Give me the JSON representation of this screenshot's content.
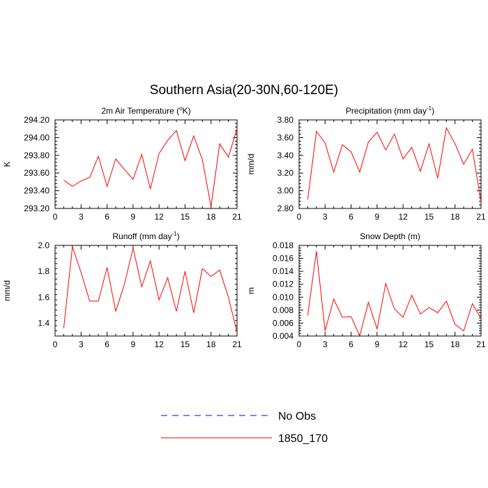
{
  "figure_title": "Southern Asia(20-30N,60-120E)",
  "colors": {
    "model": "#ff0000",
    "obs": "#0000ff",
    "axis": "#000000"
  },
  "legend": [
    {
      "label": "No Obs",
      "style": "dashed",
      "color": "#0000ff"
    },
    {
      "label": "1850_170",
      "style": "solid",
      "color": "#ff0000"
    }
  ],
  "chart_data": [
    {
      "type": "line",
      "title": "2m Air Temperature (°K)",
      "title_parts": [
        "2m Air Temperature (",
        "o",
        "K)"
      ],
      "xlabel": "",
      "ylabel": "K",
      "xlim": [
        0,
        21
      ],
      "ylim": [
        293.2,
        294.2
      ],
      "xticks": [
        0,
        3,
        6,
        9,
        12,
        15,
        18,
        21
      ],
      "yticks": [
        293.2,
        293.4,
        293.6,
        293.8,
        294.0,
        294.2
      ],
      "ytick_labels": [
        "293.20",
        "293.40",
        "293.60",
        "293.80",
        "294.00",
        "294.20"
      ],
      "grid": false,
      "series": [
        {
          "name": "1850_170",
          "x": [
            1,
            2,
            3,
            4,
            5,
            6,
            7,
            8,
            9,
            10,
            11,
            12,
            13,
            14,
            15,
            16,
            17,
            18,
            19,
            20,
            21
          ],
          "values": [
            293.52,
            293.45,
            293.51,
            293.55,
            293.79,
            293.45,
            293.76,
            293.64,
            293.53,
            293.81,
            293.42,
            293.82,
            293.97,
            294.08,
            293.74,
            294.02,
            293.75,
            293.22,
            293.93,
            293.78,
            294.1
          ]
        }
      ]
    },
    {
      "type": "line",
      "title": "Precipitation (mm day⁻¹)",
      "title_parts": [
        "Precipitation (mm day",
        "-1",
        ")"
      ],
      "xlabel": "",
      "ylabel": "mm/d",
      "xlim": [
        0,
        21
      ],
      "ylim": [
        2.8,
        3.8
      ],
      "xticks": [
        0,
        3,
        6,
        9,
        12,
        15,
        18,
        21
      ],
      "yticks": [
        2.8,
        3.0,
        3.2,
        3.4,
        3.6,
        3.8
      ],
      "ytick_labels": [
        "2.80",
        "3.00",
        "3.20",
        "3.40",
        "3.60",
        "3.80"
      ],
      "grid": false,
      "series": [
        {
          "name": "1850_170",
          "x": [
            1,
            2,
            3,
            4,
            5,
            6,
            7,
            8,
            9,
            10,
            11,
            12,
            13,
            14,
            15,
            16,
            17,
            18,
            19,
            20,
            21
          ],
          "values": [
            2.9,
            3.67,
            3.54,
            3.21,
            3.52,
            3.44,
            3.21,
            3.55,
            3.66,
            3.46,
            3.64,
            3.36,
            3.49,
            3.22,
            3.53,
            3.14,
            3.71,
            3.53,
            3.3,
            3.47,
            2.87
          ]
        }
      ]
    },
    {
      "type": "line",
      "title": "Runoff (mm day⁻¹)",
      "title_parts": [
        "Runoff (mm day",
        "-1",
        ")"
      ],
      "xlabel": "",
      "ylabel": "mm/d",
      "xlim": [
        0,
        21
      ],
      "ylim": [
        1.3,
        2.0
      ],
      "xticks": [
        0,
        3,
        6,
        9,
        12,
        15,
        18,
        21
      ],
      "yticks": [
        1.4,
        1.6,
        1.8,
        2.0
      ],
      "ytick_labels": [
        "1.4",
        "1.6",
        "1.8",
        "2.0"
      ],
      "grid": false,
      "series": [
        {
          "name": "1850_170",
          "x": [
            1,
            2,
            3,
            4,
            5,
            6,
            7,
            8,
            9,
            10,
            11,
            12,
            13,
            14,
            15,
            16,
            17,
            18,
            19,
            20,
            21
          ],
          "values": [
            1.36,
            1.99,
            1.79,
            1.57,
            1.57,
            1.83,
            1.49,
            1.7,
            1.98,
            1.68,
            1.88,
            1.58,
            1.75,
            1.49,
            1.8,
            1.48,
            1.82,
            1.76,
            1.81,
            1.6,
            1.33
          ]
        }
      ]
    },
    {
      "type": "line",
      "title": "Snow Depth (m)",
      "title_parts": [
        "Snow Depth (m)",
        "",
        ""
      ],
      "xlabel": "",
      "ylabel": "m",
      "xlim": [
        0,
        21
      ],
      "ylim": [
        0.004,
        0.018
      ],
      "xticks": [
        0,
        3,
        6,
        9,
        12,
        15,
        18,
        21
      ],
      "yticks": [
        0.004,
        0.006,
        0.008,
        0.01,
        0.012,
        0.014,
        0.016,
        0.018
      ],
      "ytick_labels": [
        "0.004",
        "0.006",
        "0.008",
        "0.010",
        "0.012",
        "0.014",
        "0.016",
        "0.018"
      ],
      "grid": false,
      "series": [
        {
          "name": "1850_170",
          "x": [
            1,
            2,
            3,
            4,
            5,
            6,
            7,
            8,
            9,
            10,
            11,
            12,
            13,
            14,
            15,
            16,
            17,
            18,
            19,
            20,
            21
          ],
          "values": [
            0.0072,
            0.0171,
            0.0048,
            0.0097,
            0.0069,
            0.007,
            0.004,
            0.0092,
            0.0051,
            0.0121,
            0.0082,
            0.0069,
            0.0103,
            0.0074,
            0.0084,
            0.0076,
            0.0094,
            0.0058,
            0.0048,
            0.009,
            0.0067
          ]
        }
      ]
    }
  ]
}
